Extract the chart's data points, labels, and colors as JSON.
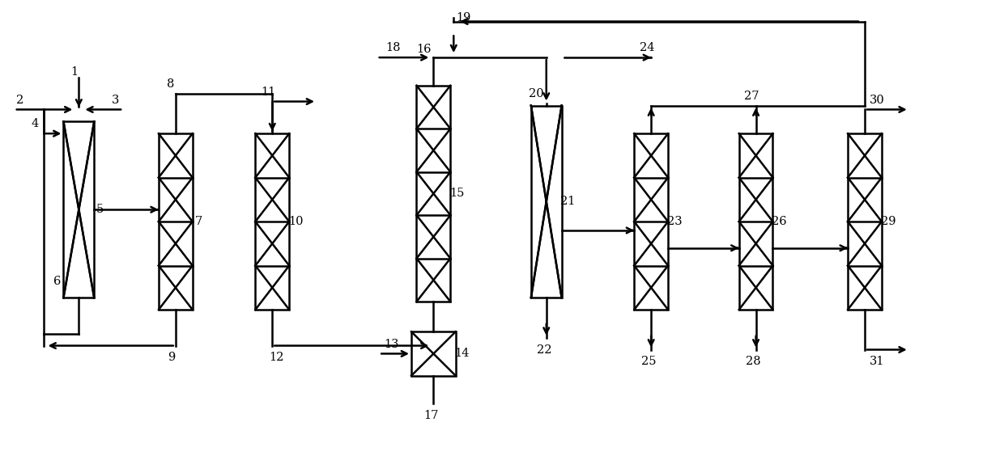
{
  "fig_width": 12.4,
  "fig_height": 5.64,
  "bg_color": "#ffffff",
  "line_color": "#000000",
  "lw": 1.8
}
